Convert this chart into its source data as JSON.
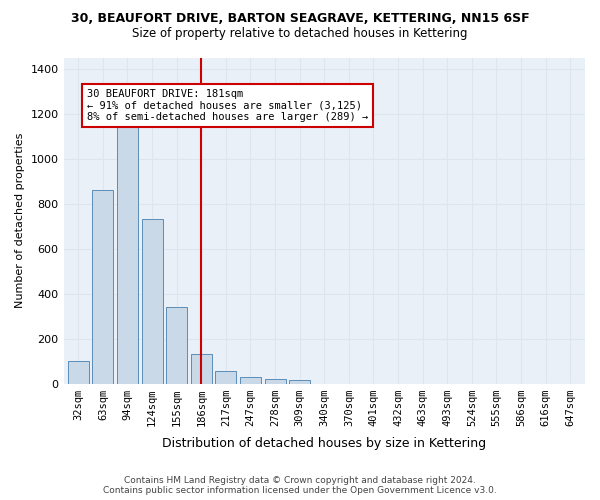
{
  "title_line1": "30, BEAUFORT DRIVE, BARTON SEAGRAVE, KETTERING, NN15 6SF",
  "title_line2": "Size of property relative to detached houses in Kettering",
  "xlabel": "Distribution of detached houses by size in Kettering",
  "ylabel": "Number of detached properties",
  "categories": [
    "32sqm",
    "63sqm",
    "94sqm",
    "124sqm",
    "155sqm",
    "186sqm",
    "217sqm",
    "247sqm",
    "278sqm",
    "309sqm",
    "340sqm",
    "370sqm",
    "401sqm",
    "432sqm",
    "463sqm",
    "493sqm",
    "524sqm",
    "555sqm",
    "586sqm",
    "616sqm",
    "647sqm"
  ],
  "values": [
    100,
    860,
    1175,
    730,
    340,
    130,
    55,
    28,
    20,
    15,
    0,
    0,
    0,
    0,
    0,
    0,
    0,
    0,
    0,
    0,
    0
  ],
  "bar_color": "#c9d9e8",
  "bar_edge_color": "#5b8db8",
  "vline_x": 5,
  "vline_color": "#cc0000",
  "annotation_text": "30 BEAUFORT DRIVE: 181sqm\n← 91% of detached houses are smaller (3,125)\n8% of semi-detached houses are larger (289) →",
  "annotation_box_color": "#ffffff",
  "annotation_box_edge": "#cc0000",
  "ylim": [
    0,
    1450
  ],
  "yticks": [
    0,
    200,
    400,
    600,
    800,
    1000,
    1200,
    1400
  ],
  "grid_color": "#dce6f0",
  "bg_color": "#eaf0f8",
  "footnote": "Contains HM Land Registry data © Crown copyright and database right 2024.\nContains public sector information licensed under the Open Government Licence v3.0."
}
